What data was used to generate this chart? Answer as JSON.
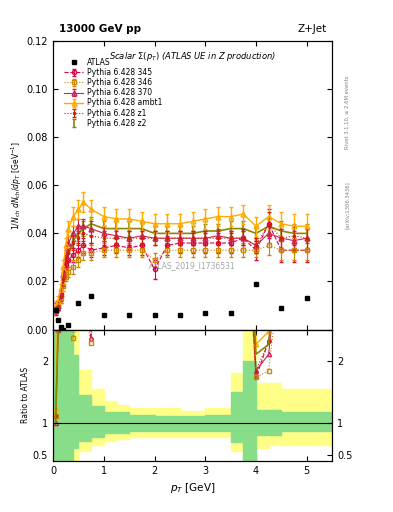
{
  "title_top": "13000 GeV pp",
  "title_right": "Z+Jet",
  "plot_title": "Scalar Σ(p_T) (ATLAS UE in Z production)",
  "ylabel_main": "1/N_{ch} dN_{ch}/dp_T [GeV⁻¹]",
  "ylabel_ratio": "Ratio to ATLAS",
  "xlabel": "p_T [GeV]",
  "watermark": "ATLAS_2019_I1736531",
  "rivet_label": "Rivet 3.1.10, ≥ 2.6M events",
  "arxiv_label": "[arXiv:1306.3436]",
  "atlas_x": [
    0.05,
    0.1,
    0.15,
    0.2,
    0.3,
    0.5,
    0.75,
    1.0,
    1.5,
    2.0,
    2.5,
    3.0,
    3.5,
    4.0,
    4.5,
    5.0
  ],
  "atlas_y": [
    0.008,
    0.004,
    0.001,
    0.0,
    0.002,
    0.011,
    0.014,
    0.006,
    0.006,
    0.006,
    0.006,
    0.007,
    0.007,
    0.019,
    0.009,
    0.013
  ],
  "py345_x": [
    0.05,
    0.1,
    0.15,
    0.2,
    0.25,
    0.3,
    0.4,
    0.5,
    0.6,
    0.75,
    1.0,
    1.25,
    1.5,
    1.75,
    2.0,
    2.25,
    2.5,
    2.75,
    3.0,
    3.25,
    3.5,
    3.75,
    4.0,
    4.25,
    4.5,
    4.75,
    5.0
  ],
  "py345_y": [
    0.009,
    0.01,
    0.015,
    0.022,
    0.027,
    0.029,
    0.031,
    0.033,
    0.035,
    0.033,
    0.034,
    0.035,
    0.034,
    0.035,
    0.025,
    0.035,
    0.036,
    0.036,
    0.036,
    0.036,
    0.036,
    0.038,
    0.033,
    0.044,
    0.033,
    0.033,
    0.033
  ],
  "py345_yerr": [
    0.002,
    0.002,
    0.002,
    0.003,
    0.003,
    0.003,
    0.003,
    0.003,
    0.003,
    0.003,
    0.003,
    0.003,
    0.003,
    0.004,
    0.004,
    0.004,
    0.004,
    0.004,
    0.004,
    0.004,
    0.004,
    0.004,
    0.004,
    0.006,
    0.005,
    0.005,
    0.005
  ],
  "py345_color": "#dd0044",
  "py345_label": "Pythia 6.428 345",
  "py346_x": [
    0.05,
    0.1,
    0.15,
    0.2,
    0.25,
    0.3,
    0.4,
    0.5,
    0.6,
    0.75,
    1.0,
    1.25,
    1.5,
    1.75,
    2.0,
    2.25,
    2.5,
    2.75,
    3.0,
    3.25,
    3.5,
    3.75,
    4.0,
    4.25,
    4.5,
    4.75,
    5.0
  ],
  "py346_y": [
    0.009,
    0.01,
    0.013,
    0.018,
    0.022,
    0.024,
    0.026,
    0.029,
    0.032,
    0.032,
    0.033,
    0.033,
    0.033,
    0.033,
    0.029,
    0.033,
    0.033,
    0.033,
    0.033,
    0.033,
    0.033,
    0.033,
    0.033,
    0.035,
    0.033,
    0.033,
    0.033
  ],
  "py346_yerr": [
    0.002,
    0.002,
    0.002,
    0.002,
    0.002,
    0.002,
    0.003,
    0.003,
    0.003,
    0.003,
    0.003,
    0.003,
    0.003,
    0.003,
    0.003,
    0.003,
    0.003,
    0.003,
    0.003,
    0.003,
    0.003,
    0.003,
    0.003,
    0.004,
    0.004,
    0.004,
    0.004
  ],
  "py346_color": "#cc8800",
  "py346_label": "Pythia 6.428 346",
  "py370_x": [
    0.05,
    0.1,
    0.15,
    0.2,
    0.25,
    0.3,
    0.4,
    0.5,
    0.6,
    0.75,
    1.0,
    1.25,
    1.5,
    1.75,
    2.0,
    2.25,
    2.5,
    2.75,
    3.0,
    3.25,
    3.5,
    3.75,
    4.0,
    4.25,
    4.5,
    4.75,
    5.0
  ],
  "py370_y": [
    0.008,
    0.01,
    0.015,
    0.023,
    0.03,
    0.036,
    0.04,
    0.043,
    0.043,
    0.042,
    0.04,
    0.039,
    0.038,
    0.039,
    0.038,
    0.038,
    0.038,
    0.038,
    0.038,
    0.039,
    0.038,
    0.038,
    0.035,
    0.04,
    0.038,
    0.037,
    0.038
  ],
  "py370_yerr": [
    0.002,
    0.002,
    0.002,
    0.003,
    0.003,
    0.003,
    0.003,
    0.003,
    0.003,
    0.003,
    0.003,
    0.003,
    0.003,
    0.003,
    0.003,
    0.003,
    0.003,
    0.003,
    0.003,
    0.003,
    0.003,
    0.003,
    0.003,
    0.004,
    0.004,
    0.004,
    0.004
  ],
  "py370_color": "#cc2255",
  "py370_label": "Pythia 6.428 370",
  "pyambt1_x": [
    0.05,
    0.1,
    0.15,
    0.2,
    0.25,
    0.3,
    0.4,
    0.5,
    0.6,
    0.75,
    1.0,
    1.25,
    1.5,
    1.75,
    2.0,
    2.25,
    2.5,
    2.75,
    3.0,
    3.25,
    3.5,
    3.75,
    4.0,
    4.25,
    4.5,
    4.75,
    5.0
  ],
  "pyambt1_y": [
    0.01,
    0.012,
    0.017,
    0.026,
    0.035,
    0.042,
    0.047,
    0.05,
    0.053,
    0.05,
    0.047,
    0.046,
    0.046,
    0.045,
    0.044,
    0.044,
    0.044,
    0.045,
    0.046,
    0.047,
    0.047,
    0.048,
    0.043,
    0.047,
    0.044,
    0.043,
    0.043
  ],
  "pyambt1_yerr": [
    0.002,
    0.002,
    0.002,
    0.003,
    0.003,
    0.003,
    0.004,
    0.004,
    0.004,
    0.004,
    0.004,
    0.004,
    0.004,
    0.004,
    0.004,
    0.004,
    0.004,
    0.004,
    0.004,
    0.004,
    0.004,
    0.004,
    0.004,
    0.005,
    0.005,
    0.005,
    0.005
  ],
  "pyambt1_color": "#ffaa00",
  "pyambt1_label": "Pythia 6.428 ambt1",
  "pyz1_x": [
    0.05,
    0.1,
    0.15,
    0.2,
    0.25,
    0.3,
    0.4,
    0.5,
    0.6,
    0.75,
    1.0,
    1.25,
    1.5,
    1.75,
    2.0,
    2.25,
    2.5,
    2.75,
    3.0,
    3.25,
    3.5,
    3.75,
    4.0,
    4.25,
    4.5,
    4.75,
    5.0
  ],
  "pyz1_y": [
    0.009,
    0.01,
    0.014,
    0.021,
    0.028,
    0.032,
    0.036,
    0.038,
    0.04,
    0.039,
    0.038,
    0.038,
    0.038,
    0.038,
    0.038,
    0.038,
    0.038,
    0.038,
    0.038,
    0.038,
    0.038,
    0.038,
    0.035,
    0.044,
    0.038,
    0.039,
    0.038
  ],
  "pyz1_yerr": [
    0.002,
    0.002,
    0.002,
    0.003,
    0.003,
    0.003,
    0.003,
    0.003,
    0.003,
    0.003,
    0.003,
    0.003,
    0.003,
    0.003,
    0.003,
    0.003,
    0.003,
    0.003,
    0.003,
    0.003,
    0.003,
    0.003,
    0.003,
    0.005,
    0.004,
    0.004,
    0.004
  ],
  "pyz1_color": "#cc2200",
  "pyz1_label": "Pythia 6.428 z1",
  "pyz2_x": [
    0.05,
    0.1,
    0.15,
    0.2,
    0.25,
    0.3,
    0.4,
    0.5,
    0.6,
    0.75,
    1.0,
    1.25,
    1.5,
    1.75,
    2.0,
    2.25,
    2.5,
    2.75,
    3.0,
    3.25,
    3.5,
    3.75,
    4.0,
    4.25,
    4.5,
    4.75,
    5.0
  ],
  "pyz2_y": [
    0.008,
    0.01,
    0.013,
    0.02,
    0.026,
    0.031,
    0.037,
    0.04,
    0.042,
    0.044,
    0.042,
    0.042,
    0.042,
    0.042,
    0.04,
    0.04,
    0.04,
    0.04,
    0.041,
    0.041,
    0.042,
    0.042,
    0.04,
    0.043,
    0.041,
    0.04,
    0.04
  ],
  "pyz2_yerr": [
    0.002,
    0.002,
    0.002,
    0.002,
    0.003,
    0.003,
    0.003,
    0.003,
    0.003,
    0.003,
    0.003,
    0.003,
    0.003,
    0.003,
    0.003,
    0.003,
    0.003,
    0.003,
    0.003,
    0.003,
    0.003,
    0.003,
    0.003,
    0.004,
    0.004,
    0.004,
    0.004
  ],
  "pyz2_color": "#888800",
  "pyz2_label": "Pythia 6.428 z2",
  "ylim_main": [
    0.0,
    0.12
  ],
  "ylim_ratio": [
    0.4,
    2.5
  ],
  "xlim": [
    0.0,
    5.5
  ],
  "ratio_bands": {
    "yellow_segments": [
      {
        "x": [
          0.0,
          0.4
        ],
        "ylo": 0.4,
        "yhi": 2.5
      },
      {
        "x": [
          0.4,
          0.5
        ],
        "ylo": 0.4,
        "yhi": 2.5
      },
      {
        "x": [
          0.5,
          0.75
        ],
        "ylo": 0.55,
        "yhi": 1.85
      },
      {
        "x": [
          0.75,
          1.0
        ],
        "ylo": 0.65,
        "yhi": 1.55
      },
      {
        "x": [
          1.0,
          1.25
        ],
        "ylo": 0.72,
        "yhi": 1.35
      },
      {
        "x": [
          1.25,
          1.5
        ],
        "ylo": 0.75,
        "yhi": 1.3
      },
      {
        "x": [
          1.5,
          2.0
        ],
        "ylo": 0.78,
        "yhi": 1.25
      },
      {
        "x": [
          2.0,
          2.5
        ],
        "ylo": 0.78,
        "yhi": 1.25
      },
      {
        "x": [
          2.5,
          3.0
        ],
        "ylo": 0.78,
        "yhi": 1.2
      },
      {
        "x": [
          3.0,
          3.5
        ],
        "ylo": 0.78,
        "yhi": 1.25
      },
      {
        "x": [
          3.5,
          3.75
        ],
        "ylo": 0.55,
        "yhi": 1.8
      },
      {
        "x": [
          3.75,
          4.0
        ],
        "ylo": 0.4,
        "yhi": 2.5
      },
      {
        "x": [
          4.0,
          4.25
        ],
        "ylo": 0.6,
        "yhi": 1.65
      },
      {
        "x": [
          4.25,
          4.5
        ],
        "ylo": 0.65,
        "yhi": 1.65
      },
      {
        "x": [
          4.5,
          5.5
        ],
        "ylo": 0.65,
        "yhi": 1.55
      }
    ],
    "green_segments": [
      {
        "x": [
          0.0,
          0.4
        ],
        "ylo": 0.4,
        "yhi": 2.5
      },
      {
        "x": [
          0.4,
          0.5
        ],
        "ylo": 0.6,
        "yhi": 2.1
      },
      {
        "x": [
          0.5,
          0.75
        ],
        "ylo": 0.72,
        "yhi": 1.45
      },
      {
        "x": [
          0.75,
          1.0
        ],
        "ylo": 0.78,
        "yhi": 1.28
      },
      {
        "x": [
          1.0,
          1.5
        ],
        "ylo": 0.85,
        "yhi": 1.18
      },
      {
        "x": [
          1.5,
          2.0
        ],
        "ylo": 0.88,
        "yhi": 1.14
      },
      {
        "x": [
          2.0,
          3.0
        ],
        "ylo": 0.88,
        "yhi": 1.12
      },
      {
        "x": [
          3.0,
          3.5
        ],
        "ylo": 0.88,
        "yhi": 1.14
      },
      {
        "x": [
          3.5,
          3.75
        ],
        "ylo": 0.7,
        "yhi": 1.5
      },
      {
        "x": [
          3.75,
          4.0
        ],
        "ylo": 0.4,
        "yhi": 2.0
      },
      {
        "x": [
          4.0,
          4.5
        ],
        "ylo": 0.82,
        "yhi": 1.22
      },
      {
        "x": [
          4.5,
          5.5
        ],
        "ylo": 0.88,
        "yhi": 1.18
      }
    ]
  }
}
